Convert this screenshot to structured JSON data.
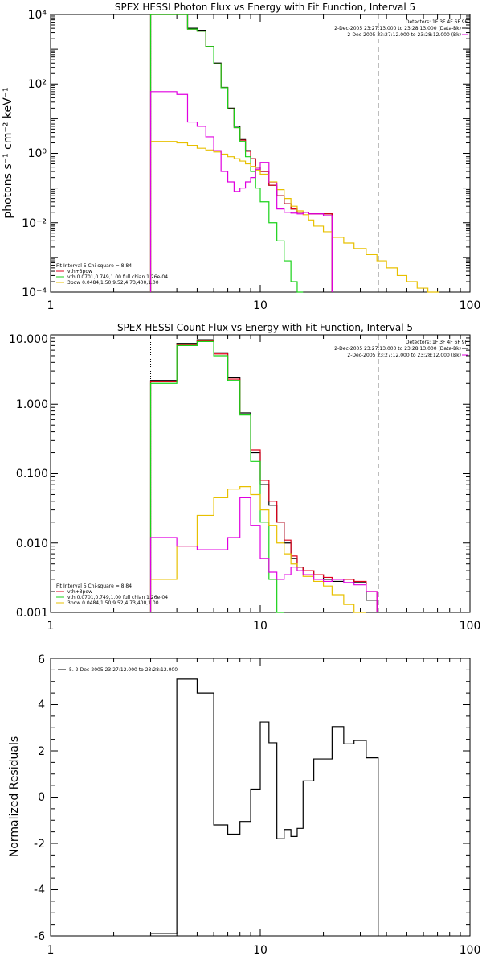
{
  "chart_data": [
    {
      "type": "line",
      "title": "SPEX HESSI Photon Flux vs Energy with Fit Function, Interval 5",
      "xlabel": "",
      "ylabel": "photons s⁻¹ cm⁻² keV⁻¹",
      "xscale": "log",
      "yscale": "log",
      "xlim": [
        1,
        100
      ],
      "ylim": [
        0.0001,
        10000
      ],
      "x_ticks": [
        1,
        10,
        100
      ],
      "x_tick_labels": [
        "1",
        "10",
        "100"
      ],
      "y_ticks": [
        0.0001,
        0.01,
        1,
        100,
        10000
      ],
      "y_tick_labels": [
        "10⁻⁴",
        "10⁻²",
        "10⁰",
        "10²",
        "10⁴"
      ],
      "bin_edges": [
        3,
        4,
        4.5,
        5,
        5.5,
        6,
        6.5,
        7,
        7.5,
        8,
        8.5,
        9,
        9.5,
        10,
        11,
        12,
        13,
        14,
        15,
        16,
        17,
        18,
        20,
        22,
        25,
        28,
        32,
        36,
        40,
        45,
        50,
        56,
        63,
        71,
        79,
        89,
        100
      ],
      "series": [
        {
          "name": "",
          "color": "#000000",
          "values": [
            10000,
            10000,
            4000,
            3500,
            1200,
            400,
            80,
            20,
            6,
            2.5,
            1.2,
            0.7,
            0.4,
            0.3,
            0.12,
            0.06,
            0.035,
            0.025,
            0.02,
            0.02,
            0.018,
            0.018,
            0.018
          ]
        },
        {
          "name": "vth+3pow",
          "color": "#e0001b",
          "values": [
            10000,
            10000,
            3800,
            3300,
            1200,
            380,
            78,
            19,
            5.5,
            2.4,
            1.15,
            0.7,
            0.4,
            0.3,
            0.12,
            0.06,
            0.035,
            0.025,
            0.02,
            0.02,
            0.018,
            0.018,
            0.018
          ]
        },
        {
          "name": "vth 0.0701,0.749,1.00  full chian 1.26e-04",
          "color": "#19d219",
          "values": [
            10000,
            10000,
            3800,
            3300,
            1200,
            380,
            78,
            19,
            5.5,
            2.2,
            0.8,
            0.3,
            0.1,
            0.04,
            0.01,
            0.003,
            0.0008,
            0.0002,
            0.0001
          ]
        },
        {
          "name": "3pow 0.0484,1.50,9.52,4.73,400,1.00",
          "color": "#e8c000",
          "values": [
            2.2,
            2.0,
            1.7,
            1.4,
            1.25,
            1.1,
            0.95,
            0.8,
            0.7,
            0.6,
            0.5,
            0.42,
            0.33,
            0.25,
            0.15,
            0.09,
            0.05,
            0.03,
            0.022,
            0.017,
            0.012,
            0.008,
            0.0055,
            0.0038,
            0.0026,
            0.0018,
            0.0012,
            0.0008,
            0.0005,
            0.0003,
            0.0002,
            0.00013,
            0.0001
          ]
        },
        {
          "name": "",
          "color": "#e000e0",
          "values": [
            60,
            50,
            8,
            6,
            3,
            1.2,
            0.3,
            0.15,
            0.08,
            0.1,
            0.15,
            0.2,
            0.35,
            0.55,
            0.14,
            0.025,
            0.02,
            0.019,
            0.018,
            0.02,
            0.018,
            0.018,
            0.016
          ]
        }
      ],
      "vlines": [
        {
          "x": 3,
          "style": "dotted"
        },
        {
          "x": 36.5,
          "style": "dashed"
        }
      ],
      "header_lines": [
        "Detectors: 1F 3F 4F 6F 9F",
        "2-Dec-2005 23:27:13.000 to 23:28:13.000 (Data-Bk)",
        "2-Dec-2005 23:27:12.000 to 23:28:12.000 (Bk)"
      ],
      "legend_heading": "Fit Interval 5   Chi-square = 8.84",
      "legend_position": "bottom-left"
    },
    {
      "type": "line",
      "title": "SPEX HESSI Count Flux vs Energy with Fit Function, Interval 5",
      "xlabel": "",
      "ylabel": "",
      "xscale": "log",
      "yscale": "log",
      "xlim": [
        1,
        100
      ],
      "ylim": [
        0.001,
        10
      ],
      "x_ticks": [
        1,
        10,
        100
      ],
      "x_tick_labels": [
        "1",
        "10",
        "100"
      ],
      "y_ticks": [
        0.001,
        0.01,
        0.1,
        1,
        10
      ],
      "y_tick_labels": [
        "0.001",
        "0.010",
        "0.100",
        "1.000",
        "10.000"
      ],
      "bin_edges": [
        3,
        4,
        5,
        6,
        7,
        8,
        9,
        10,
        11,
        12,
        13,
        14,
        15,
        16,
        18,
        20,
        22,
        25,
        28,
        32,
        36
      ],
      "series": [
        {
          "name": "",
          "color": "#000000",
          "values": [
            2.2,
            7.5,
            8.5,
            5.5,
            2.4,
            0.75,
            0.2,
            0.07,
            0.035,
            0.02,
            0.01,
            0.006,
            0.0045,
            0.004,
            0.0035,
            0.003,
            0.0028,
            0.003,
            0.0027,
            0.0015
          ]
        },
        {
          "name": "vth+3pow",
          "color": "#e0001b",
          "values": [
            2.1,
            7.2,
            8.2,
            5.3,
            2.3,
            0.72,
            0.22,
            0.08,
            0.04,
            0.02,
            0.011,
            0.0065,
            0.0045,
            0.004,
            0.0035,
            0.0032,
            0.003,
            0.003,
            0.0028,
            0.002
          ]
        },
        {
          "name": "vth 0.0701,0.749,1.00  full chian 1.26e-04",
          "color": "#19d219",
          "values": [
            2.0,
            7.0,
            8.0,
            5.0,
            2.2,
            0.7,
            0.15,
            0.02,
            0.003,
            0.001
          ]
        },
        {
          "name": "3pow 0.0484,1.50,9.52,4.73,400,1.00",
          "color": "#e8c000",
          "values": [
            0.003,
            0.009,
            0.025,
            0.045,
            0.06,
            0.065,
            0.05,
            0.03,
            0.018,
            0.01,
            0.007,
            0.005,
            0.004,
            0.0033,
            0.0028,
            0.0024,
            0.0018,
            0.0013,
            0.001
          ]
        },
        {
          "name": "",
          "color": "#e000e0",
          "values": [
            0.012,
            0.009,
            0.008,
            0.008,
            0.012,
            0.045,
            0.018,
            0.006,
            0.0038,
            0.003,
            0.0035,
            0.0045,
            0.004,
            0.0035,
            0.003,
            0.0028,
            0.003,
            0.0027,
            0.0025,
            0.002
          ]
        }
      ],
      "vlines": [
        {
          "x": 3,
          "style": "dotted"
        },
        {
          "x": 36.5,
          "style": "dashed"
        }
      ],
      "header_lines": [
        "Detectors: 1F 3F 4F 6F 9F",
        "2-Dec-2005 23:27:13.000 to 23:28:13.000 (Data-Bk)",
        "2-Dec-2005 23:27:12.000 to 23:28:12.000 (Bk)"
      ],
      "legend_heading": "Fit Interval 5   Chi-square = 8.84",
      "legend_position": "bottom-left"
    },
    {
      "type": "line",
      "title": "",
      "xlabel": "",
      "ylabel": "Normalized Residuals",
      "xscale": "log",
      "yscale": "linear",
      "xlim": [
        1,
        100
      ],
      "ylim": [
        -6,
        6
      ],
      "x_ticks": [
        1,
        10,
        100
      ],
      "x_tick_labels": [
        "1",
        "10",
        "100"
      ],
      "y_ticks": [
        -6,
        -4,
        -2,
        0,
        2,
        4,
        6
      ],
      "y_tick_labels": [
        "-6",
        "-4",
        "-2",
        "0",
        "2",
        "4",
        "6"
      ],
      "bin_edges": [
        3,
        4,
        5,
        6,
        7,
        8,
        9,
        10,
        11,
        12,
        13,
        14,
        15,
        16,
        18,
        20,
        22,
        25,
        28,
        32,
        36.5
      ],
      "series": [
        {
          "name": "5. 2-Dec-2005 23:27:12.000 to 23:28:12.000",
          "color": "#000000",
          "values": [
            -5.9,
            5.1,
            4.5,
            -1.2,
            -1.6,
            -1.05,
            0.35,
            3.25,
            2.35,
            -1.8,
            -1.4,
            -1.7,
            -1.35,
            0.7,
            1.65,
            1.65,
            3.05,
            2.3,
            2.45,
            1.7
          ]
        }
      ],
      "start_value": -6,
      "end_value": -6,
      "legend_position": "top-left"
    }
  ]
}
